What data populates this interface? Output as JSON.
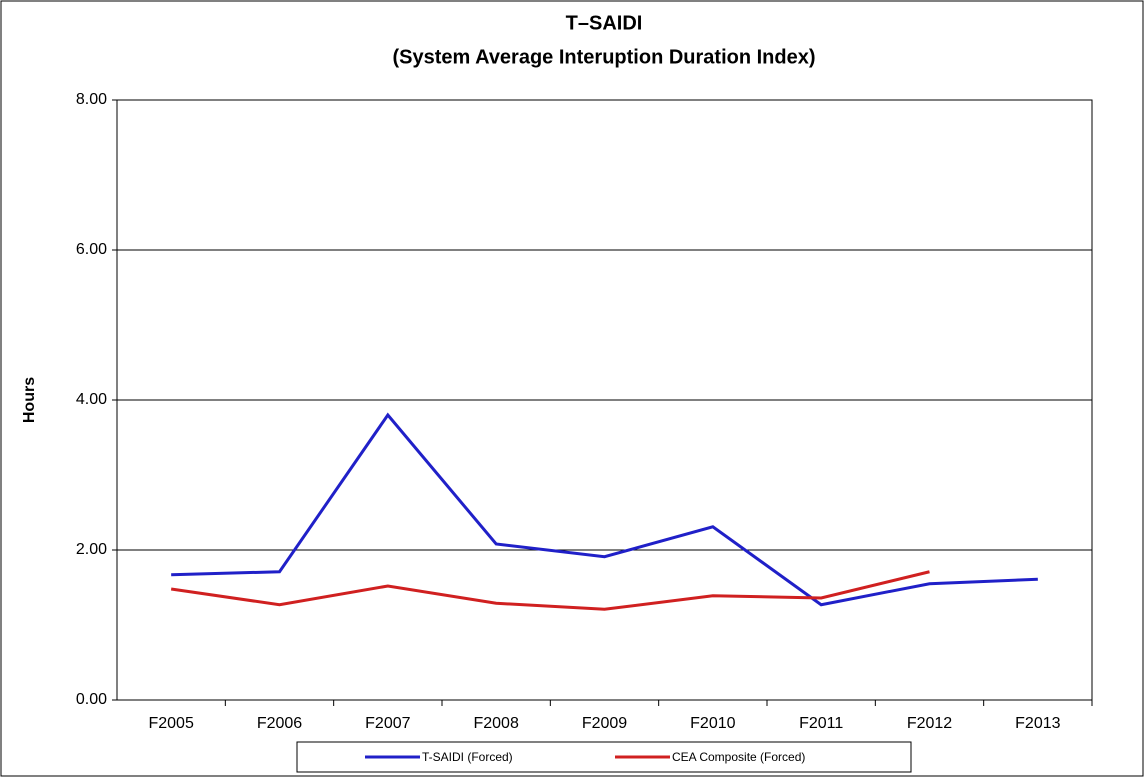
{
  "chart_data": {
    "type": "line",
    "title": "T–SAIDI",
    "subtitle": "(System Average Interuption Duration Index)",
    "y_label": "Hours",
    "categories": [
      "F2005",
      "F2006",
      "F2007",
      "F2008",
      "F2009",
      "F2010",
      "F2011",
      "F2012",
      "F2013"
    ],
    "series": [
      {
        "name": "T-SAIDI (Forced)",
        "color": "#2020c8",
        "values": [
          1.67,
          1.71,
          3.8,
          2.08,
          1.91,
          2.31,
          1.27,
          1.55,
          1.61
        ]
      },
      {
        "name": "CEA Composite (Forced)",
        "color": "#d02020",
        "values": [
          1.48,
          1.27,
          1.52,
          1.29,
          1.21,
          1.39,
          1.36,
          1.71,
          null
        ]
      }
    ],
    "ylim": [
      0,
      8
    ],
    "yticks": [
      {
        "value": 0,
        "label": "0.00"
      },
      {
        "value": 2,
        "label": "2.00"
      },
      {
        "value": 4,
        "label": "4.00"
      },
      {
        "value": 6,
        "label": "6.00"
      },
      {
        "value": 8,
        "label": "8.00"
      }
    ],
    "grid": true,
    "legend": "bottom"
  }
}
